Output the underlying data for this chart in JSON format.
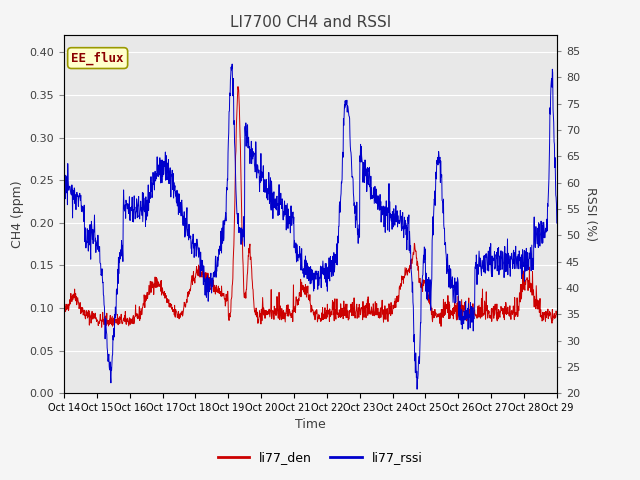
{
  "title": "LI7700 CH4 and RSSI",
  "xlabel": "Time",
  "ylabel_left": "CH4 (ppm)",
  "ylabel_right": "RSSI (%)",
  "ylim_left": [
    0.0,
    0.42
  ],
  "ylim_right": [
    20,
    88
  ],
  "yticks_left": [
    0.0,
    0.05,
    0.1,
    0.15,
    0.2,
    0.25,
    0.3,
    0.35,
    0.4
  ],
  "yticks_right": [
    20,
    25,
    30,
    35,
    40,
    45,
    50,
    55,
    60,
    65,
    70,
    75,
    80,
    85
  ],
  "xtick_labels": [
    "Oct 14",
    "Oct 15",
    "Oct 16",
    "Oct 17",
    "Oct 18",
    "Oct 19",
    "Oct 20",
    "Oct 21",
    "Oct 22",
    "Oct 23",
    "Oct 24",
    "Oct 25",
    "Oct 26",
    "Oct 27",
    "Oct 28",
    "Oct 29"
  ],
  "color_red": "#cc0000",
  "color_blue": "#0000cc",
  "label_red": "li77_den",
  "label_blue": "li77_rssi",
  "annotation_label": "EE_flux",
  "annotation_bg": "#ffffcc",
  "annotation_border": "#999900",
  "plot_bg": "#e8e8e8",
  "fig_bg": "#f5f5f5",
  "title_color": "#404040",
  "axis_label_color": "#404040",
  "grid_color": "#ffffff",
  "line_width": 0.7
}
